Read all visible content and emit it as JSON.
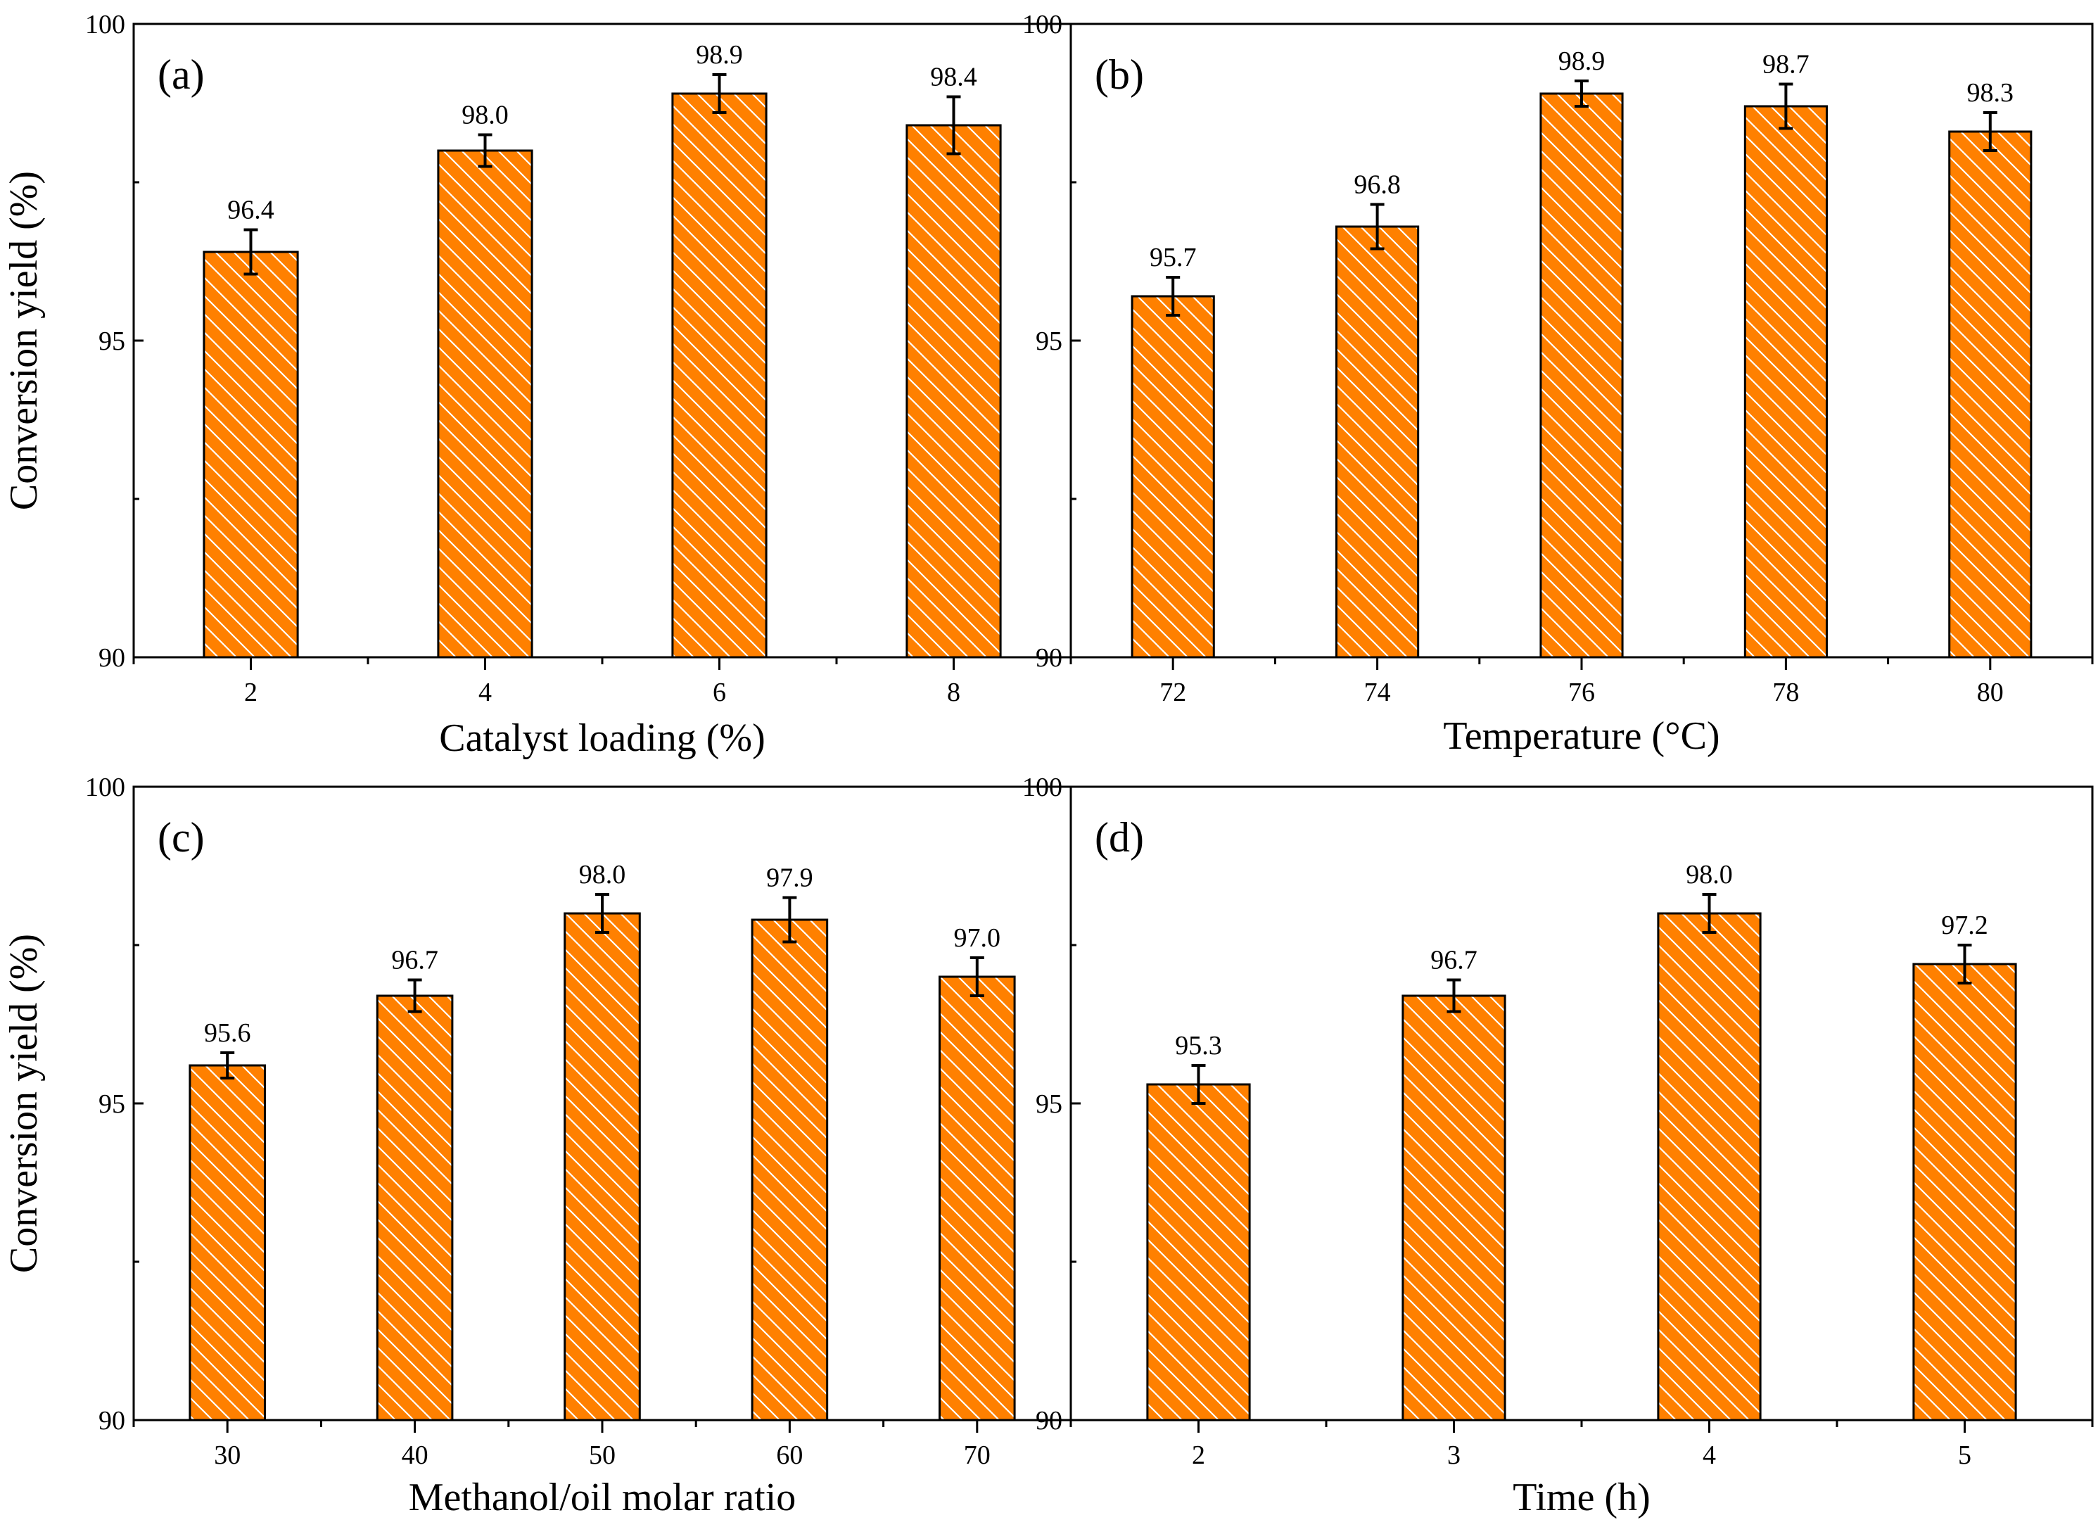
{
  "chart_data": [
    {
      "type": "bar",
      "panel_label": "(a)",
      "xlabel": "Catalyst loading (%)",
      "ylabel": "Conversion yield (%)",
      "ylim": [
        90,
        100
      ],
      "yticks": [
        "90",
        "95",
        "100"
      ],
      "categories": [
        "2",
        "4",
        "6",
        "8"
      ],
      "values": [
        96.4,
        98.0,
        98.9,
        98.4
      ],
      "value_labels": [
        "96.4",
        "98.0",
        "98.9",
        "98.4"
      ],
      "errors": [
        0.35,
        0.25,
        0.3,
        0.45
      ]
    },
    {
      "type": "bar",
      "panel_label": "(b)",
      "xlabel": "Temperature (°C)",
      "ylabel": "",
      "ylim": [
        90,
        100
      ],
      "yticks": [
        "90",
        "95",
        "100"
      ],
      "categories": [
        "72",
        "74",
        "76",
        "78",
        "80"
      ],
      "values": [
        95.7,
        96.8,
        98.9,
        98.7,
        98.3
      ],
      "value_labels": [
        "95.7",
        "96.8",
        "98.9",
        "98.7",
        "98.3"
      ],
      "errors": [
        0.3,
        0.35,
        0.2,
        0.35,
        0.3
      ]
    },
    {
      "type": "bar",
      "panel_label": "(c)",
      "xlabel": "Methanol/oil molar ratio",
      "ylabel": "Conversion yield (%)",
      "ylim": [
        90,
        100
      ],
      "yticks": [
        "90",
        "95",
        "100"
      ],
      "categories": [
        "30",
        "40",
        "50",
        "60",
        "70"
      ],
      "values": [
        95.6,
        96.7,
        98.0,
        97.9,
        97.0
      ],
      "value_labels": [
        "95.6",
        "96.7",
        "98.0",
        "97.9",
        "97.0"
      ],
      "errors": [
        0.2,
        0.25,
        0.3,
        0.35,
        0.3
      ]
    },
    {
      "type": "bar",
      "panel_label": "(d)",
      "xlabel": "Time (h)",
      "ylabel": "",
      "ylim": [
        90,
        100
      ],
      "yticks": [
        "90",
        "95",
        "100"
      ],
      "categories": [
        "2",
        "3",
        "4",
        "5"
      ],
      "values": [
        95.3,
        96.7,
        98.0,
        97.2
      ],
      "value_labels": [
        "95.3",
        "96.7",
        "98.0",
        "97.2"
      ],
      "errors": [
        0.3,
        0.25,
        0.3,
        0.3
      ]
    }
  ],
  "colors": {
    "bar_fill": "#ff8000",
    "hatch": "#ffffff",
    "outline": "#000000"
  }
}
